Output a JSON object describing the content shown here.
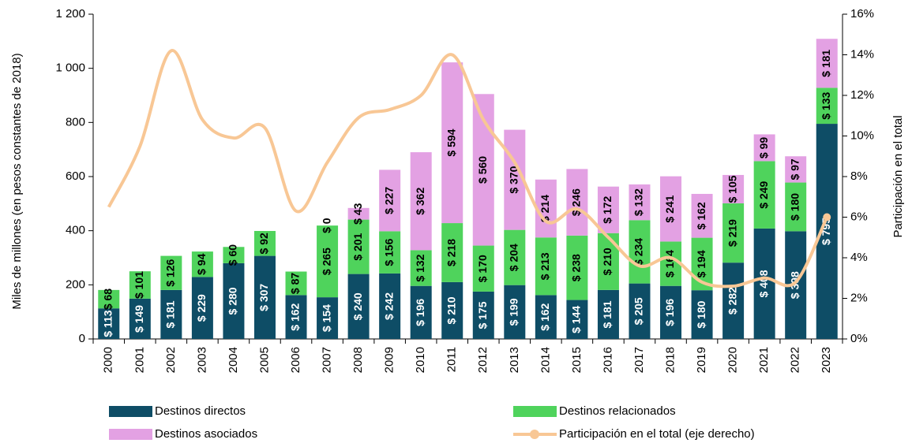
{
  "chart_data": {
    "type": "bar",
    "stacked": true,
    "y_label": "Miles de millones (en pesos constantes de 2018)",
    "y2_label": "Participación en el total",
    "categories": [
      "2000",
      "2001",
      "2002",
      "2003",
      "2004",
      "2005",
      "2006",
      "2007",
      "2008",
      "2009",
      "2010",
      "2011",
      "2012",
      "2013",
      "2014",
      "2015",
      "2016",
      "2017",
      "2018",
      "2019",
      "2020",
      "2021",
      "2022",
      "2023"
    ],
    "series": [
      {
        "name": "Destinos directos",
        "color": "#0e4d66",
        "label_color": "#ffffff",
        "values": [
          113,
          149,
          181,
          229,
          280,
          307,
          162,
          154,
          240,
          242,
          196,
          210,
          175,
          199,
          162,
          144,
          181,
          205,
          196,
          180,
          282,
          408,
          398,
          795
        ],
        "value_labels": [
          "$ 113",
          "$ 149",
          "$ 181",
          "$ 229",
          "$ 280",
          "$ 307",
          "$ 162",
          "$ 154",
          "$ 240",
          "$ 242",
          "$ 196",
          "$ 210",
          "$ 175",
          "$ 199",
          "$ 162",
          "$ 144",
          "$ 181",
          "$ 205",
          "$ 196",
          "$ 180",
          "$ 282",
          "$ 408",
          "$ 398",
          "$ 795"
        ]
      },
      {
        "name": "Destinos relacionados",
        "color": "#4fd35c",
        "label_color": "#000000",
        "values": [
          68,
          101,
          126,
          94,
          60,
          92,
          87,
          265,
          201,
          156,
          132,
          218,
          170,
          204,
          213,
          238,
          210,
          234,
          164,
          194,
          219,
          249,
          180,
          133
        ],
        "value_labels": [
          "$ 68",
          "$ 101",
          "$ 126",
          "$ 94",
          "$ 60",
          "$ 92",
          "$ 87",
          "$ 265",
          "$ 201",
          "$ 156",
          "$ 132",
          "$ 218",
          "$ 170",
          "$ 204",
          "$ 213",
          "$ 238",
          "$ 210",
          "$ 234",
          "$ 164",
          "$ 194",
          "$ 219",
          "$ 249",
          "$ 180",
          "$ 133"
        ]
      },
      {
        "name": "Destinos asociados",
        "color": "#e3a1e3",
        "label_color": "#000000",
        "values": [
          null,
          null,
          null,
          null,
          null,
          null,
          null,
          0,
          43,
          227,
          362,
          594,
          560,
          370,
          214,
          246,
          172,
          132,
          241,
          162,
          105,
          99,
          97,
          181
        ],
        "value_labels": [
          null,
          null,
          null,
          null,
          null,
          null,
          null,
          "$ 0",
          "$ 43",
          "$ 227",
          "$ 362",
          "$ 594",
          "$ 560",
          "$ 370",
          "$ 214",
          "$ 246",
          "$ 172",
          "$ 132",
          "$ 241",
          "$ 162",
          "$ 105",
          "$ 99",
          "$ 97",
          "$ 181"
        ]
      },
      {
        "name": "Participación en el total (eje derecho)",
        "color": "#f8c795",
        "type": "line",
        "axis": "y2",
        "values": [
          6.5,
          9.5,
          14.2,
          10.8,
          9.9,
          10.4,
          6.3,
          8.7,
          10.9,
          11.3,
          12.0,
          14.0,
          10.8,
          8.7,
          5.8,
          6.4,
          5.0,
          3.6,
          4.0,
          2.8,
          2.6,
          3.0,
          2.8,
          6.0
        ]
      }
    ],
    "ylim": [
      0,
      1200
    ],
    "yticks": [
      0,
      200,
      400,
      600,
      800,
      {
        "value": 1000,
        "label": "1 000"
      },
      {
        "value": 1200,
        "label": "1 200"
      }
    ],
    "y2lim": [
      0,
      16
    ],
    "y2ticks": [
      {
        "value": 0,
        "label": "0%"
      },
      {
        "value": 2,
        "label": "2%"
      },
      {
        "value": 4,
        "label": "4%"
      },
      {
        "value": 6,
        "label": "6%"
      },
      {
        "value": 8,
        "label": "8%"
      },
      {
        "value": 10,
        "label": "10%"
      },
      {
        "value": 12,
        "label": "12%"
      },
      {
        "value": 14,
        "label": "14%"
      },
      {
        "value": 16,
        "label": "16%"
      }
    ],
    "legend": "bottom"
  }
}
